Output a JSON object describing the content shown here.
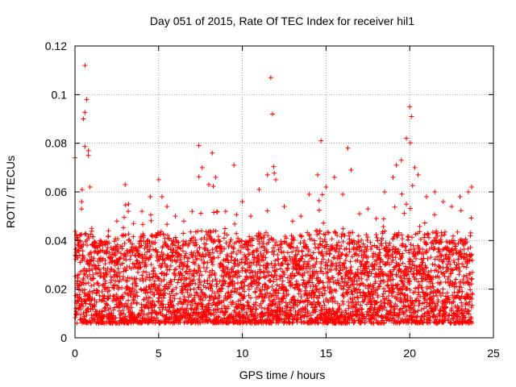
{
  "chart_data": {
    "type": "scatter",
    "title": "Day 051 of 2015, Rate Of TEC Index for receiver hil1",
    "xlabel": "GPS time / hours",
    "ylabel": "ROTI / TECUs",
    "xlim": [
      0,
      25
    ],
    "ylim": [
      0,
      0.12
    ],
    "x_ticks": [
      0,
      5,
      10,
      15,
      20,
      25
    ],
    "y_ticks": [
      0,
      0.02,
      0.04,
      0.06,
      0.08,
      0.1,
      0.12
    ],
    "x_tick_labels": [
      "0",
      "5",
      "10",
      "15",
      "20",
      "25"
    ],
    "y_tick_labels": [
      "0",
      "0.02",
      "0.04",
      "0.06",
      "0.08",
      "0.1",
      "0.12"
    ],
    "grid": true,
    "marker": "+",
    "color": "#ff0000",
    "series": [
      {
        "name": "ROTI",
        "x": [
          0.0,
          0.1,
          0.2,
          0.3,
          0.4,
          0.5,
          0.6,
          0.7,
          0.8,
          0.9,
          1.0,
          1.5,
          2.0,
          2.5,
          3.0,
          3.2,
          3.5,
          4.0,
          4.5,
          5.0,
          5.2,
          5.5,
          6.0,
          6.5,
          7.0,
          7.4,
          7.6,
          8.0,
          8.2,
          8.4,
          9.0,
          9.5,
          10.0,
          10.5,
          11.0,
          11.5,
          11.7,
          11.8,
          12.0,
          12.5,
          13.0,
          13.5,
          14.0,
          14.5,
          14.7,
          15.0,
          15.5,
          16.0,
          16.3,
          16.5,
          17.0,
          17.5,
          18.0,
          18.5,
          19.0,
          19.2,
          19.5,
          19.8,
          20.0,
          20.1,
          20.3,
          20.5,
          21.0,
          21.5,
          22.0,
          22.5,
          23.0,
          23.5,
          23.7
        ],
        "y": [
          0.074,
          0.042,
          0.038,
          0.04,
          0.056,
          0.09,
          0.112,
          0.098,
          0.075,
          0.062,
          0.045,
          0.04,
          0.044,
          0.048,
          0.063,
          0.055,
          0.047,
          0.052,
          0.058,
          0.065,
          0.058,
          0.054,
          0.05,
          0.048,
          0.052,
          0.079,
          0.07,
          0.063,
          0.076,
          0.066,
          0.052,
          0.071,
          0.056,
          0.05,
          0.061,
          0.067,
          0.107,
          0.092,
          0.065,
          0.054,
          0.048,
          0.05,
          0.059,
          0.067,
          0.081,
          0.062,
          0.066,
          0.059,
          0.078,
          0.069,
          0.051,
          0.053,
          0.049,
          0.06,
          0.066,
          0.071,
          0.073,
          0.082,
          0.095,
          0.091,
          0.07,
          0.067,
          0.058,
          0.06,
          0.056,
          0.054,
          0.058,
          0.06,
          0.062
        ]
      }
    ]
  }
}
